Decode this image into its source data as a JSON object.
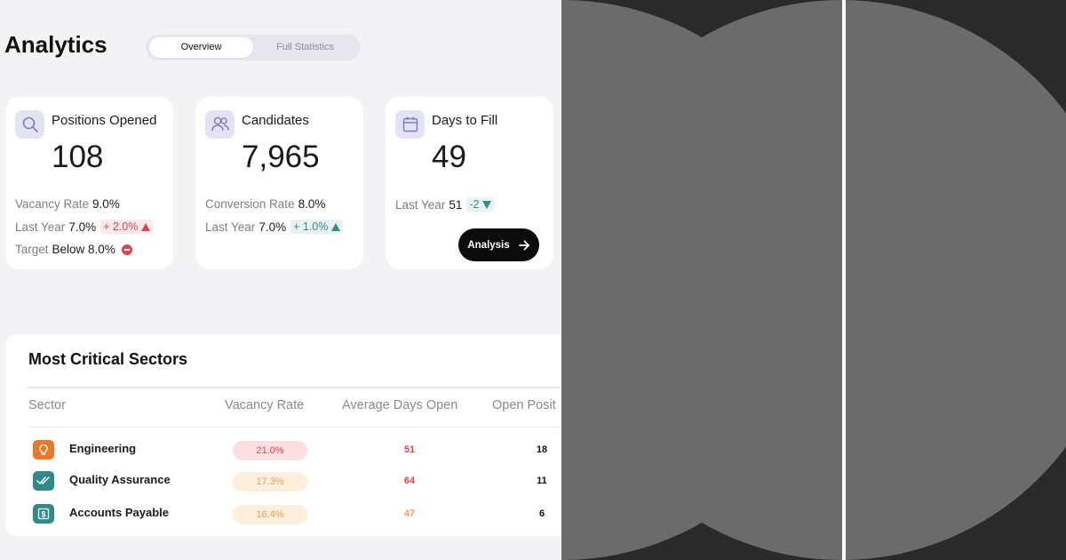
{
  "header": {
    "title": "Analytics"
  },
  "tabs": [
    {
      "label": "Overview",
      "active": true
    },
    {
      "label": "Full Statistics",
      "active": false
    }
  ],
  "cards": [
    {
      "title": "Positions Opened",
      "icon": "search-icon",
      "value": "108",
      "vacancy_label": "Vacancy Rate",
      "vacancy_value": "9.0%",
      "last_year_label": "Last Year",
      "last_year_value": "7.0%",
      "last_year_change": "+ 2.0%",
      "target_label": "Target",
      "target_value": "Below 8.0%"
    },
    {
      "title": "Candidates",
      "icon": "users-icon",
      "value": "7,965",
      "conversion_label": "Conversion Rate",
      "conversion_value": "8.0%",
      "last_year_label": "Last Year",
      "last_year_value": "7.0%",
      "last_year_change": "+ 1.0%"
    },
    {
      "title": "Days to Fill",
      "icon": "calendar-icon",
      "value": "49",
      "last_year_label": "Last Year",
      "last_year_value": "51",
      "last_year_change": "-2",
      "button_label": "Analysis"
    }
  ],
  "sectors": {
    "title": "Most Critical Sectors",
    "columns": [
      "Sector",
      "Vacancy Rate",
      "Average Days Open",
      "Open Posit"
    ],
    "rows": [
      {
        "name": "Engineering",
        "icon": "lightbulb-icon",
        "vacancy": "21.0%",
        "days": "51",
        "open": "18"
      },
      {
        "name": "Quality Assurance",
        "icon": "check-double-icon",
        "vacancy": "17.3%",
        "days": "64",
        "open": "11"
      },
      {
        "name": "Accounts Payable",
        "icon": "dollar-icon",
        "vacancy": "16.4%",
        "days": "47",
        "open": "6"
      }
    ]
  },
  "colors": {
    "accent_red": "#e0454e",
    "accent_teal": "#3a8a8a",
    "accent_orange": "#f0a050",
    "icon_bg": "#e3e3f3"
  }
}
